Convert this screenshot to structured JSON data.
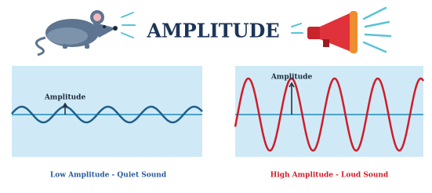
{
  "title": "AMPLITUDE",
  "panels": [
    {
      "label": "Amplitude",
      "caption": "Low Amplitude - Quiet Sound"
    },
    {
      "label": "Amplitude",
      "caption": "High Amplitude - Loud Sound"
    }
  ]
}
